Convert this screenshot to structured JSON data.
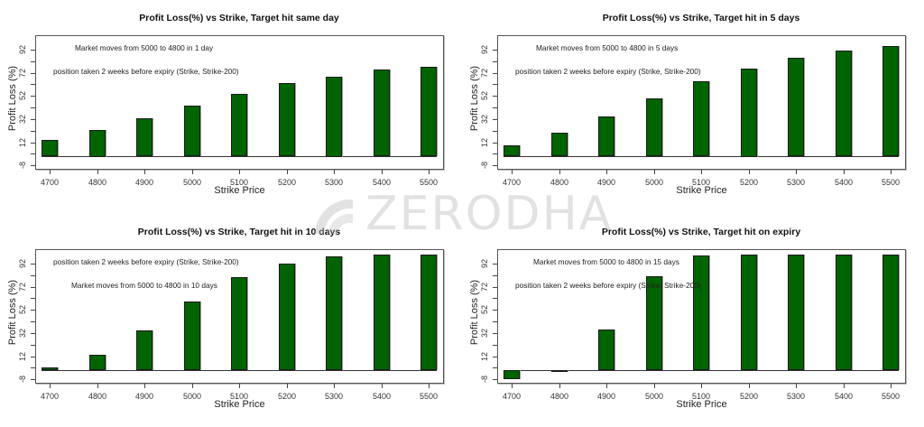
{
  "watermark": {
    "text": "ZERODHA"
  },
  "colors": {
    "bar": "#006400",
    "watermark": "#bebebe"
  },
  "chart_data": [
    {
      "type": "bar",
      "title": "Profit Loss(%) vs Strike, Target hit same day",
      "xlabel": "Strike Price",
      "ylabel": "Profit Loss (%)",
      "categories": [
        "4700",
        "4800",
        "4900",
        "5000",
        "5100",
        "5200",
        "5300",
        "5400",
        "5500"
      ],
      "values": [
        14,
        23,
        33,
        44,
        54,
        63,
        69,
        75,
        77
      ],
      "yticks": [
        "-8",
        "12",
        "32",
        "52",
        "72",
        "92"
      ],
      "ylim": [
        -12,
        105
      ],
      "annotations": [
        "Market moves from 5000 to 4800 in 1 day",
        "position taken 2 weeks before expiry (Strike, Strike-200)"
      ],
      "grid": false,
      "legend": null
    },
    {
      "type": "bar",
      "title": "Profit Loss(%) vs Strike, Target hit in 5 days",
      "xlabel": "Strike Price",
      "ylabel": "Profit Loss (%)",
      "categories": [
        "4700",
        "4800",
        "4900",
        "5000",
        "5100",
        "5200",
        "5300",
        "5400",
        "5500"
      ],
      "values": [
        9,
        20,
        34,
        50,
        65,
        76,
        85,
        91,
        95
      ],
      "yticks": [
        "-8",
        "12",
        "32",
        "52",
        "72",
        "92"
      ],
      "ylim": [
        -12,
        105
      ],
      "annotations": [
        "Market moves from 5000 to 4800 in 5 days",
        "position taken 2 weeks before expiry (Strike, Strike-200)"
      ],
      "grid": false,
      "legend": null
    },
    {
      "type": "bar",
      "title": "Profit Loss(%) vs Strike, Target hit in 10 days",
      "xlabel": "Strike Price",
      "ylabel": "Profit Loss (%)",
      "categories": [
        "4700",
        "4800",
        "4900",
        "5000",
        "5100",
        "5200",
        "5300",
        "5400",
        "5500"
      ],
      "values": [
        2,
        13,
        34,
        59,
        80,
        92,
        98,
        100,
        100
      ],
      "yticks": [
        "-8",
        "12",
        "32",
        "52",
        "72",
        "92"
      ],
      "ylim": [
        -12,
        105
      ],
      "annotations": [
        "position taken 2 weeks before expiry (Strike, Strike-200)",
        "Market moves from 5000 to 4800 in 10 days"
      ],
      "grid": false,
      "legend": null
    },
    {
      "type": "bar",
      "title": "Profit Loss(%) vs Strike, Target hit on expiry",
      "xlabel": "Strike Price",
      "ylabel": "Profit Loss (%)",
      "categories": [
        "4700",
        "4800",
        "4900",
        "5000",
        "5100",
        "5200",
        "5300",
        "5400",
        "5500"
      ],
      "values": [
        -7.5,
        -1.5,
        35,
        81,
        99,
        100,
        100,
        100,
        100
      ],
      "yticks": [
        "-8",
        "12",
        "32",
        "52",
        "72",
        "92"
      ],
      "ylim": [
        -12,
        105
      ],
      "annotations": [
        "Market moves from 5000 to 4800 in 15 days",
        "position taken 2 weeks before expiry (Strike, Strike-200)"
      ],
      "grid": false,
      "legend": null
    }
  ]
}
